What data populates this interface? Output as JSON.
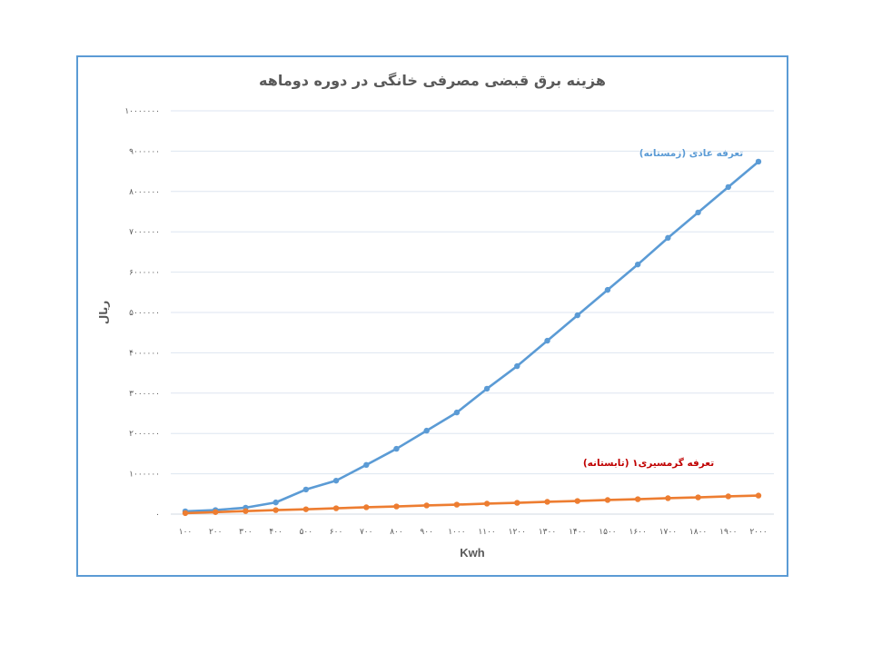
{
  "chart_data": {
    "type": "line",
    "title": "هزینه برق قبضی مصرفی خانگی  در دوره دوماهه",
    "xlabel": "Kwh",
    "ylabel": "ریال",
    "grid": true,
    "xlim": [
      100,
      2000
    ],
    "ylim": [
      0,
      10000000
    ],
    "x": [
      100,
      200,
      300,
      400,
      500,
      600,
      700,
      800,
      900,
      1000,
      1100,
      1200,
      1300,
      1400,
      1500,
      1600,
      1700,
      1800,
      1900,
      2000
    ],
    "x_tick_labels": [
      "۱۰۰",
      "۲۰۰",
      "۳۰۰",
      "۴۰۰",
      "۵۰۰",
      "۶۰۰",
      "۷۰۰",
      "۸۰۰",
      "۹۰۰",
      "۱۰۰۰",
      "۱۱۰۰",
      "۱۲۰۰",
      "۱۳۰۰",
      "۱۴۰۰",
      "۱۵۰۰",
      "۱۶۰۰",
      "۱۷۰۰",
      "۱۸۰۰",
      "۱۹۰۰",
      "۲۰۰۰"
    ],
    "y_ticks": [
      0,
      1000000,
      2000000,
      3000000,
      4000000,
      5000000,
      6000000,
      7000000,
      8000000,
      9000000,
      10000000
    ],
    "y_tick_labels": [
      "۰",
      "۱۰۰۰۰۰۰",
      "۲۰۰۰۰۰۰",
      "۳۰۰۰۰۰۰",
      "۴۰۰۰۰۰۰",
      "۵۰۰۰۰۰۰",
      "۶۰۰۰۰۰۰",
      "۷۰۰۰۰۰۰",
      "۸۰۰۰۰۰۰",
      "۹۰۰۰۰۰۰",
      "۱۰۰۰۰۰۰۰"
    ],
    "series": [
      {
        "name": "تعرفه عادی (زمستانه)",
        "color": "#5b9bd5",
        "label_color": "#5b9bd5",
        "values": [
          70000,
          100000,
          160000,
          290000,
          610000,
          830000,
          1220000,
          1620000,
          2070000,
          2520000,
          3110000,
          3670000,
          4300000,
          4930000,
          5560000,
          6190000,
          6850000,
          7480000,
          8110000,
          8740000
        ]
      },
      {
        "name": "تعرفه گرمسیری۱ (تابستانه)",
        "color": "#ed7d31",
        "label_color": "#c00000",
        "values": [
          25000,
          50000,
          75000,
          100000,
          120000,
          145000,
          170000,
          190000,
          215000,
          235000,
          260000,
          280000,
          305000,
          325000,
          350000,
          370000,
          395000,
          415000,
          440000,
          460000
        ]
      }
    ]
  }
}
